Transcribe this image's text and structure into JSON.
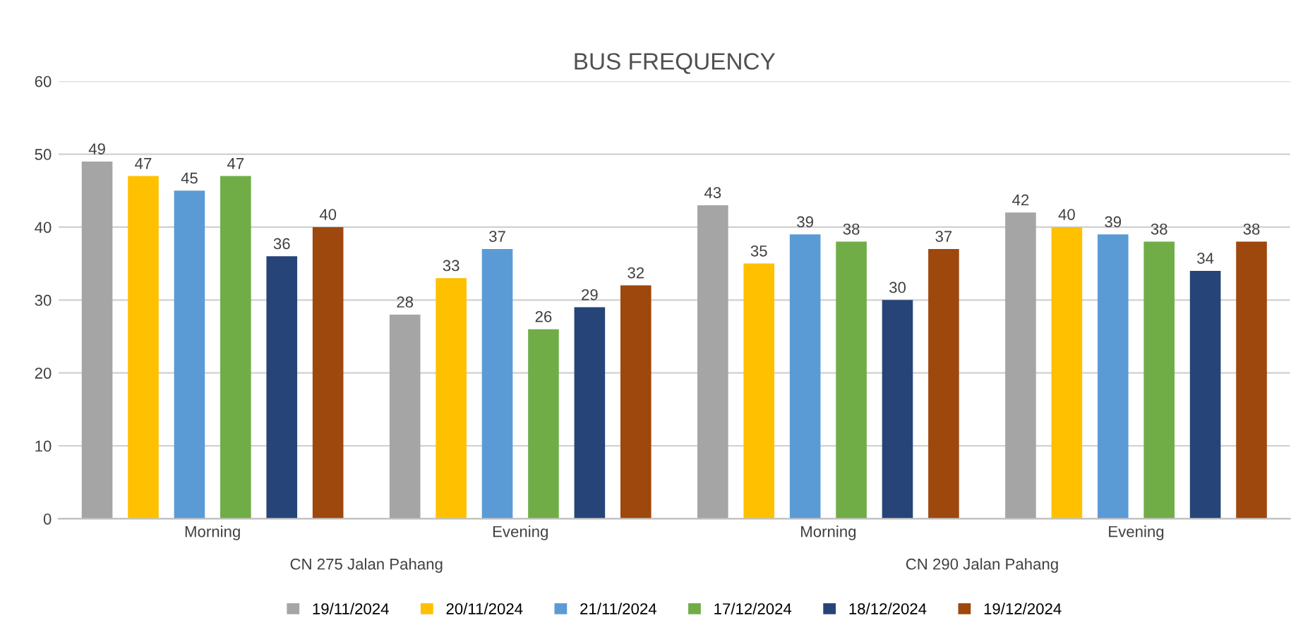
{
  "chart_data": {
    "type": "bar",
    "title": "BUS FREQUENCY",
    "categories": [
      "Morning",
      "Evening",
      "Morning",
      "Evening"
    ],
    "annotations": [
      "CN 275 Jalan Pahang",
      "CN 290 Jalan Pahang"
    ],
    "series": [
      {
        "name": "19/11/2024",
        "color": "#a5a5a5",
        "values": [
          49,
          28,
          43,
          42
        ]
      },
      {
        "name": "20/11/2024",
        "color": "#ffc000",
        "values": [
          47,
          33,
          35,
          40
        ]
      },
      {
        "name": "21/11/2024",
        "color": "#5b9bd5",
        "values": [
          45,
          37,
          39,
          39
        ]
      },
      {
        "name": "17/12/2024",
        "color": "#70ad47",
        "values": [
          47,
          26,
          38,
          38
        ]
      },
      {
        "name": "18/12/2024",
        "color": "#264478",
        "values": [
          36,
          29,
          30,
          34
        ]
      },
      {
        "name": "19/12/2024",
        "color": "#9e480e",
        "values": [
          40,
          32,
          37,
          38
        ]
      }
    ],
    "ylim": [
      0,
      60
    ],
    "yticks": [
      0,
      10,
      20,
      30,
      40,
      50,
      60
    ],
    "grid": "y",
    "legend": "bottom",
    "data_labels": true
  }
}
